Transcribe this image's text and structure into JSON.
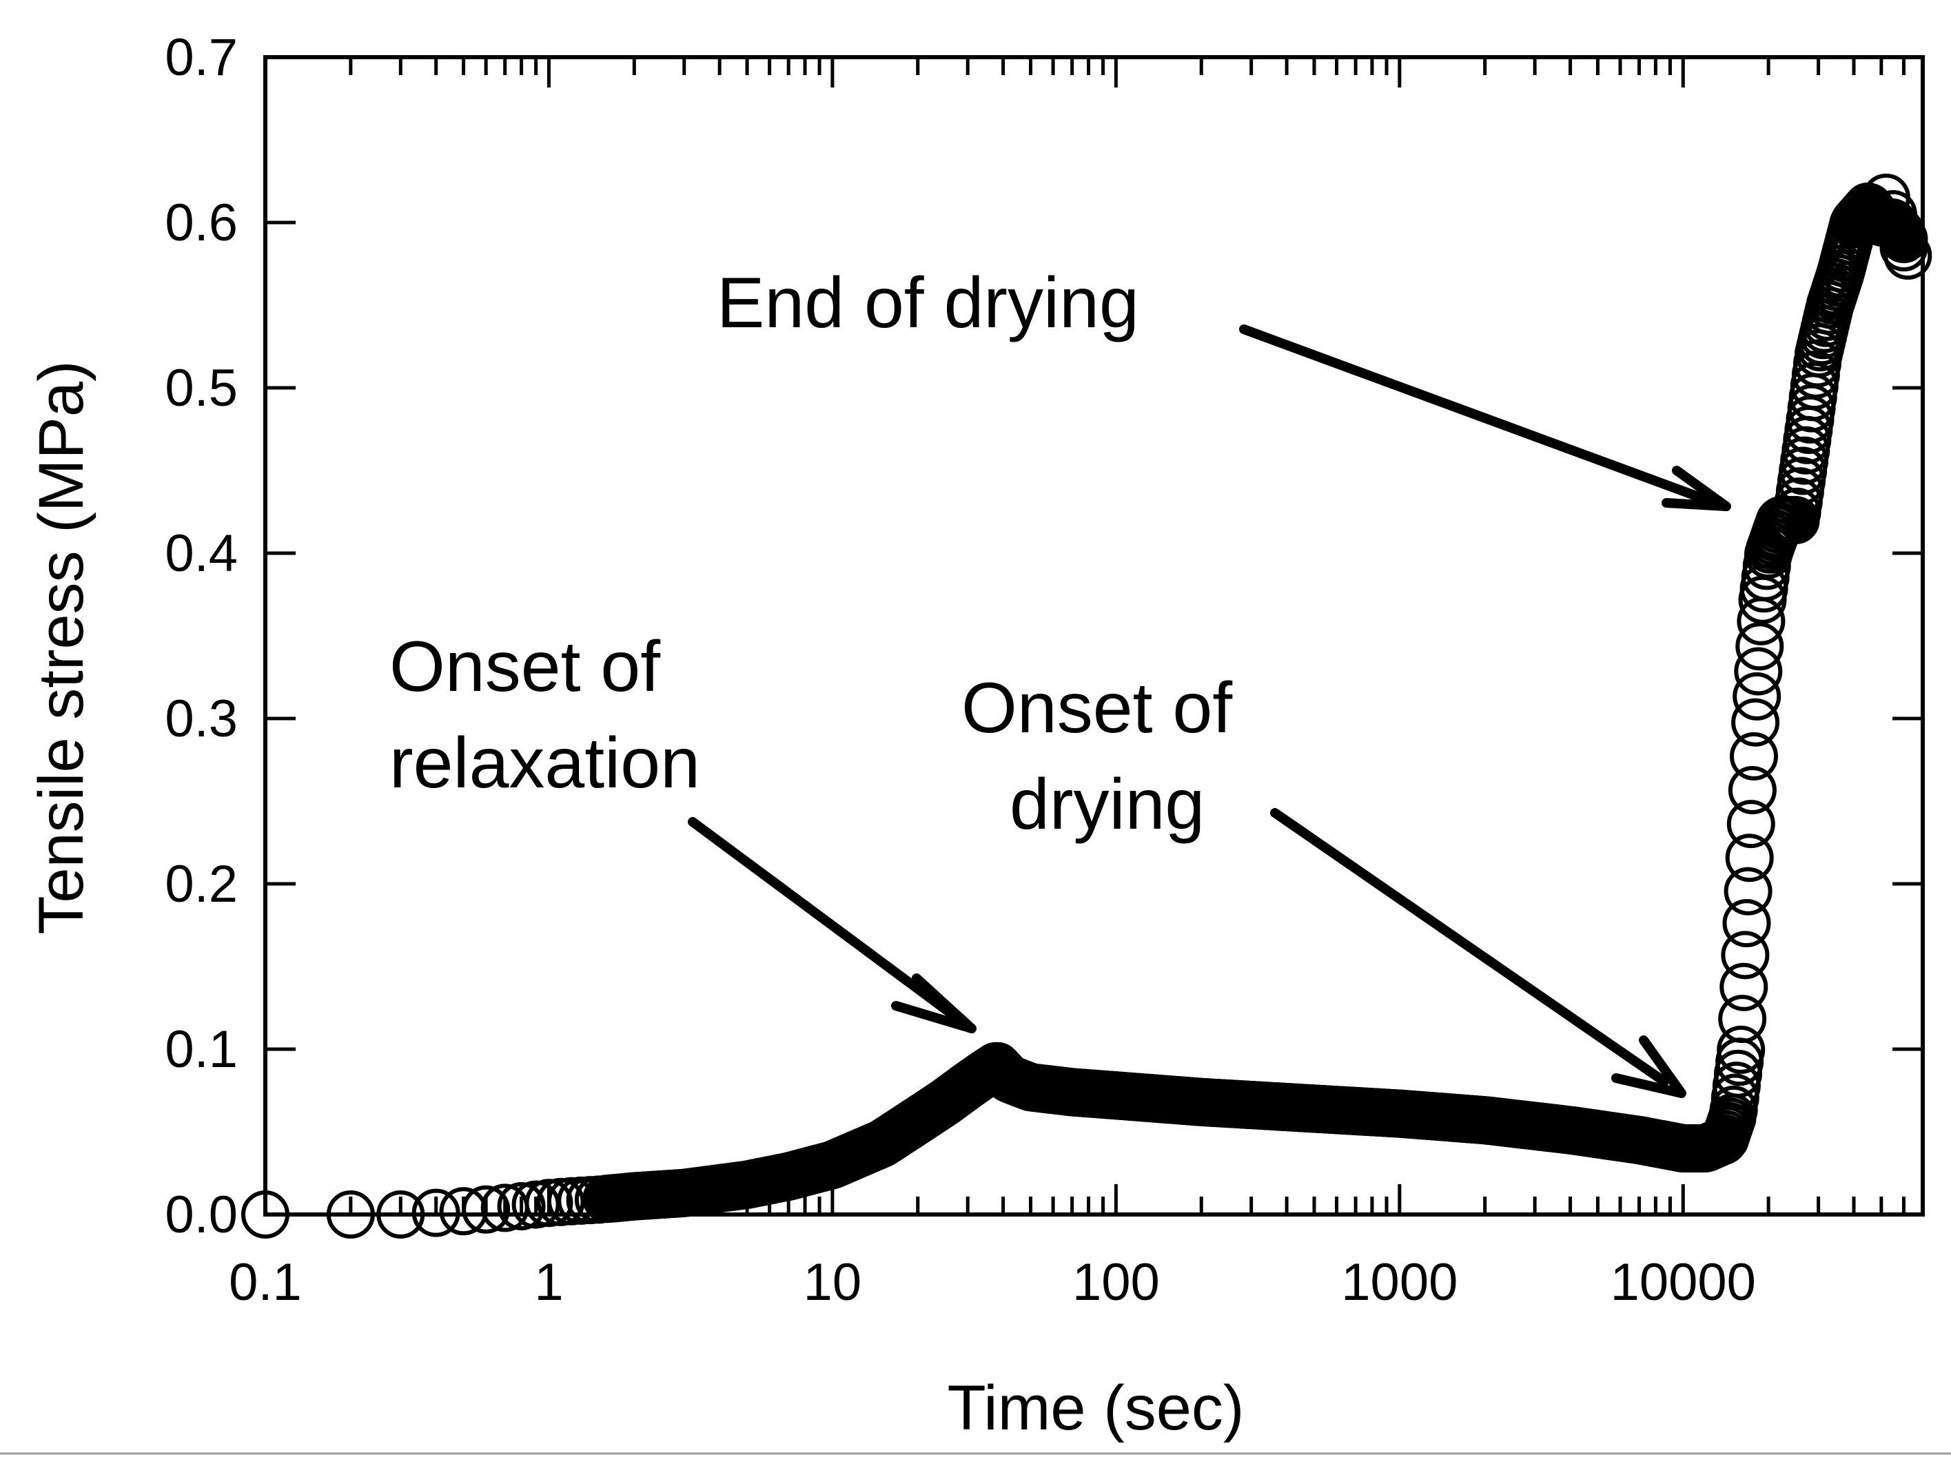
{
  "chart_data": {
    "type": "scatter",
    "title": "",
    "xlabel": "Time (sec)",
    "ylabel": "Tensile stress (MPa)",
    "xscale": "log",
    "xlim": [
      0.1,
      70000
    ],
    "ylim": [
      0,
      0.7
    ],
    "grid": false,
    "x_tick_labels": [
      {
        "value": 0.1,
        "label": "0.1"
      },
      {
        "value": 1,
        "label": "1"
      },
      {
        "value": 10,
        "label": "10"
      },
      {
        "value": 100,
        "label": "100"
      },
      {
        "value": 1000,
        "label": "1000"
      },
      {
        "value": 10000,
        "label": "10000"
      }
    ],
    "y_tick_labels": [
      {
        "value": 0,
        "label": "0.0"
      },
      {
        "value": 0.1,
        "label": "0.1"
      },
      {
        "value": 0.2,
        "label": "0.2"
      },
      {
        "value": 0.3,
        "label": "0.3"
      },
      {
        "value": 0.4,
        "label": "0.4"
      },
      {
        "value": 0.5,
        "label": "0.5"
      },
      {
        "value": 0.6,
        "label": "0.6"
      },
      {
        "value": 0.7,
        "label": "0.7"
      }
    ],
    "series": [
      {
        "name": "tensile stress",
        "marker": "open-circle",
        "x": [
          0.1,
          0.2,
          0.3,
          0.4,
          0.5,
          0.6,
          0.7,
          0.8,
          0.9,
          1,
          1.2,
          1.5,
          2,
          3,
          5,
          7,
          10,
          15,
          20,
          25,
          30,
          35,
          38,
          42,
          50,
          70,
          100,
          200,
          500,
          1000,
          2000,
          4000,
          7000,
          10000,
          12000,
          14000,
          15000,
          16000,
          17000,
          18000,
          19000,
          20000,
          22000,
          25000,
          28000,
          30000,
          33000,
          36000,
          40000,
          45000,
          50000,
          55000,
          60000
        ],
        "y": [
          0.0,
          0.0,
          0.0,
          0.001,
          0.002,
          0.003,
          0.004,
          0.005,
          0.006,
          0.007,
          0.008,
          0.009,
          0.011,
          0.013,
          0.018,
          0.023,
          0.03,
          0.043,
          0.057,
          0.068,
          0.078,
          0.086,
          0.09,
          0.082,
          0.077,
          0.074,
          0.072,
          0.068,
          0.064,
          0.061,
          0.057,
          0.051,
          0.045,
          0.04,
          0.04,
          0.045,
          0.06,
          0.1,
          0.2,
          0.3,
          0.37,
          0.4,
          0.42,
          0.42,
          0.48,
          0.52,
          0.55,
          0.57,
          0.6,
          0.61,
          0.6,
          0.6,
          0.59
        ]
      }
    ],
    "annotations": [
      {
        "lines": [
          "Onset of",
          "relaxation"
        ],
        "points_to": {
          "x": 36,
          "y": 0.11
        }
      },
      {
        "lines": [
          "Onset of",
          "drying"
        ],
        "points_to": {
          "x": 11000,
          "y": 0.07
        }
      },
      {
        "lines": [
          "End of drying"
        ],
        "points_to": {
          "x": 19500,
          "y": 0.43
        }
      }
    ]
  }
}
